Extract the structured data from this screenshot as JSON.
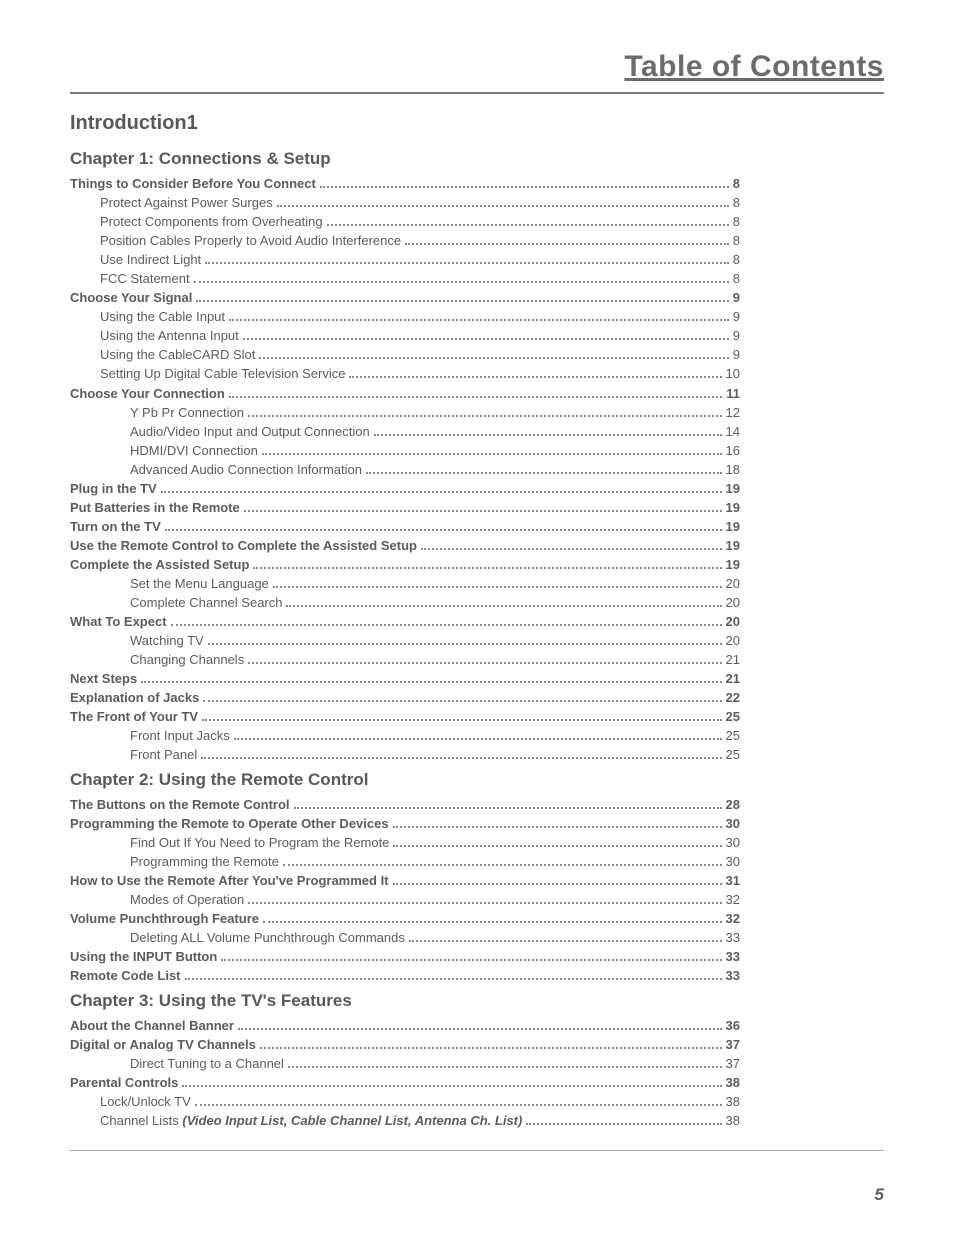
{
  "page_title": "Table of Contents",
  "page_number": "5",
  "intro": {
    "label": "Introduction",
    "page": "1"
  },
  "chapters": [
    {
      "title": "Chapter 1: Connections & Setup",
      "entries": [
        {
          "level": 0,
          "label": "Things to Consider Before You Connect",
          "page": "8"
        },
        {
          "level": 1,
          "label": "Protect Against Power Surges",
          "page": "8"
        },
        {
          "level": 1,
          "label": "Protect Components from Overheating",
          "page": "8"
        },
        {
          "level": 1,
          "label": "Position Cables Properly to Avoid Audio Interference",
          "page": "8"
        },
        {
          "level": 1,
          "label": "Use Indirect Light",
          "page": "8"
        },
        {
          "level": 1,
          "label": "FCC Statement",
          "page": "8"
        },
        {
          "level": 0,
          "label": "Choose Your Signal",
          "page": "9"
        },
        {
          "level": 1,
          "label": "Using the Cable Input",
          "page": "9"
        },
        {
          "level": 1,
          "label": "Using the Antenna Input",
          "page": "9"
        },
        {
          "level": 1,
          "label": "Using the CableCARD Slot",
          "page": "9"
        },
        {
          "level": 1,
          "label": "Setting Up Digital Cable Television Service",
          "page": "10"
        },
        {
          "level": 0,
          "label": "Choose Your Connection",
          "page": "11"
        },
        {
          "level": 2,
          "label": "Y Pb Pr Connection",
          "page": "12"
        },
        {
          "level": 2,
          "label": "Audio/Video Input and Output Connection",
          "page": "14"
        },
        {
          "level": 2,
          "label": "HDMI/DVI Connection",
          "page": "16"
        },
        {
          "level": 2,
          "label": "Advanced Audio Connection Information",
          "page": "18"
        },
        {
          "level": 0,
          "label": "Plug in the TV",
          "page": "19"
        },
        {
          "level": 0,
          "label": "Put Batteries in the Remote",
          "page": "19"
        },
        {
          "level": 0,
          "label": "Turn on the TV",
          "page": "19"
        },
        {
          "level": 0,
          "label": "Use the Remote Control to Complete the Assisted Setup",
          "page": "19"
        },
        {
          "level": 0,
          "label": "Complete the Assisted Setup",
          "page": "19"
        },
        {
          "level": 2,
          "label": "Set the Menu Language",
          "page": "20"
        },
        {
          "level": 2,
          "label": "Complete Channel Search",
          "page": "20"
        },
        {
          "level": 0,
          "label": "What To Expect",
          "page": "20"
        },
        {
          "level": 2,
          "label": "Watching TV",
          "page": "20"
        },
        {
          "level": 2,
          "label": "Changing Channels",
          "page": "21"
        },
        {
          "level": 0,
          "label": "Next Steps",
          "page": "21"
        },
        {
          "level": 0,
          "label": "Explanation of Jacks",
          "page": "22"
        },
        {
          "level": 0,
          "label": "The Front of Your TV",
          "page": "25"
        },
        {
          "level": 2,
          "label": "Front Input Jacks",
          "page": "25"
        },
        {
          "level": 2,
          "label": "Front Panel",
          "page": "25"
        }
      ]
    },
    {
      "title": "Chapter 2: Using the Remote Control",
      "entries": [
        {
          "level": 0,
          "label": "The Buttons on the Remote Control",
          "page": "28"
        },
        {
          "level": 0,
          "label": "Programming the Remote to Operate Other Devices",
          "page": "30"
        },
        {
          "level": 2,
          "label": "Find Out If You Need to Program the Remote",
          "page": "30"
        },
        {
          "level": 2,
          "label": "Programming the Remote",
          "page": "30"
        },
        {
          "level": 0,
          "label": "How to Use the Remote After You've Programmed It",
          "page": "31"
        },
        {
          "level": 2,
          "label": "Modes of Operation",
          "page": "32"
        },
        {
          "level": 0,
          "label": "Volume Punchthrough Feature",
          "page": "32"
        },
        {
          "level": 2,
          "label": "Deleting ALL Volume Punchthrough Commands",
          "page": "33"
        },
        {
          "level": 0,
          "label": "Using the INPUT Button",
          "page": "33"
        },
        {
          "level": 0,
          "label": "Remote Code List",
          "page": "33"
        }
      ]
    },
    {
      "title": "Chapter 3: Using the TV's Features",
      "entries": [
        {
          "level": 0,
          "label": "About the Channel Banner",
          "page": "36"
        },
        {
          "level": 0,
          "label": "Digital or Analog TV Channels",
          "page": "37"
        },
        {
          "level": 2,
          "label": "Direct Tuning to a Channel",
          "page": "37"
        },
        {
          "level": 0,
          "label": "Parental Controls",
          "page": "38"
        },
        {
          "level": 1,
          "label": "Lock/Unlock TV",
          "page": "38"
        },
        {
          "level": 1,
          "label": "Channel Lists",
          "italic_suffix": "(Video Input List, Cable Channel List, Antenna Ch. List)",
          "page": "38"
        }
      ]
    }
  ]
}
